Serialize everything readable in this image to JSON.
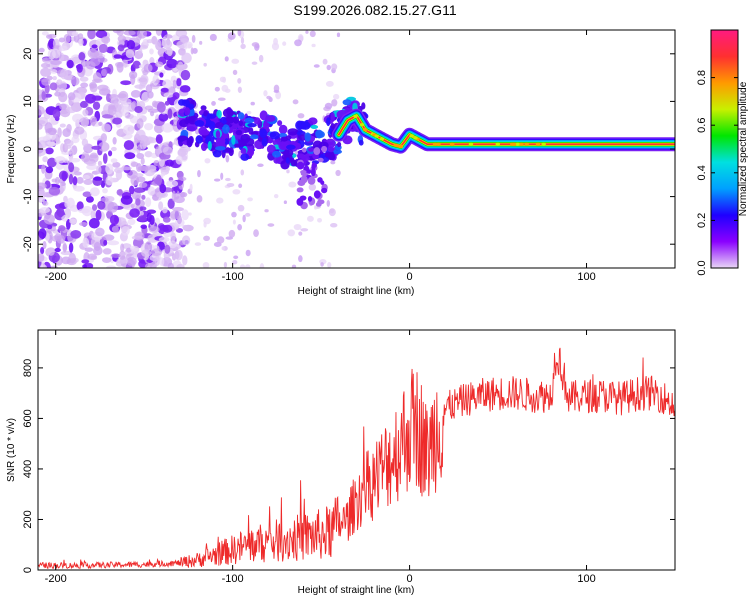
{
  "title": "S199.2026.082.15.27.G11",
  "colorbar": {
    "label": "Normalized spectral amplitude",
    "range": [
      0,
      1
    ],
    "ticks": [
      {
        "value": 0.0,
        "label": "0.0"
      },
      {
        "value": 0.2,
        "label": "0.2"
      },
      {
        "value": 0.4,
        "label": "0.4"
      },
      {
        "value": 0.6,
        "label": "0.6"
      },
      {
        "value": 0.8,
        "label": "0.8"
      }
    ],
    "colors": [
      "#e9d6f6",
      "#8a00ff",
      "#1f00ff",
      "#00a0ff",
      "#00e0e0",
      "#00e600",
      "#c8f000",
      "#ff9a00",
      "#ff3030",
      "#ff1a80"
    ]
  },
  "chart_data": [
    {
      "type": "heatmap",
      "xlabel": "Height of straight line (km)",
      "ylabel": "Frequency (Hz)",
      "xlim": [
        -210,
        150
      ],
      "ylim": [
        -25,
        25
      ],
      "xticks": [
        {
          "value": -200,
          "label": "-200"
        },
        {
          "value": -100,
          "label": "-100"
        },
        {
          "value": 0,
          "label": "0"
        },
        {
          "value": 100,
          "label": "100"
        }
      ],
      "yticks": [
        {
          "value": -20,
          "label": "-20"
        },
        {
          "value": -10,
          "label": "-10"
        },
        {
          "value": 0,
          "label": "0"
        },
        {
          "value": 10,
          "label": "10"
        },
        {
          "value": 20,
          "label": "20"
        }
      ],
      "ridge_line": {
        "x": [
          -130,
          -120,
          -110,
          -100,
          -90,
          -80,
          -70,
          -60,
          -50,
          -40,
          -35,
          -30,
          -25,
          -20,
          -15,
          -10,
          -5,
          0,
          5,
          10,
          20,
          40,
          60,
          80,
          100,
          150
        ],
        "frequency": [
          6,
          5,
          3,
          4,
          2,
          3,
          1,
          1,
          2,
          3,
          6,
          7,
          4,
          3,
          2,
          1,
          0.5,
          3,
          2,
          1,
          1,
          1,
          1,
          1,
          1,
          1
        ]
      }
    },
    {
      "type": "line",
      "xlabel": "Height of straight line (km)",
      "ylabel": "SNR (10 * v/v)",
      "xlim": [
        -210,
        150
      ],
      "ylim": [
        0,
        950
      ],
      "xticks": [
        {
          "value": -200,
          "label": "-200"
        },
        {
          "value": -100,
          "label": "-100"
        },
        {
          "value": 0,
          "label": "0"
        },
        {
          "value": 100,
          "label": "100"
        }
      ],
      "yticks": [
        {
          "value": 0,
          "label": "0"
        },
        {
          "value": 200,
          "label": "200"
        },
        {
          "value": 400,
          "label": "400"
        },
        {
          "value": 600,
          "label": "600"
        },
        {
          "value": 800,
          "label": "800"
        }
      ],
      "series": [
        {
          "name": "SNR",
          "color": "#ee2a2a",
          "x": [
            -210,
            -190,
            -170,
            -150,
            -130,
            -120,
            -110,
            -100,
            -90,
            -80,
            -70,
            -60,
            -50,
            -45,
            -40,
            -35,
            -30,
            -25,
            -20,
            -15,
            -10,
            -5,
            0,
            5,
            10,
            15,
            20,
            30,
            40,
            50,
            60,
            70,
            80,
            83,
            90,
            100,
            110,
            120,
            130,
            140,
            150
          ],
          "values": [
            18,
            18,
            20,
            22,
            28,
            40,
            60,
            80,
            100,
            110,
            120,
            130,
            140,
            150,
            180,
            200,
            280,
            320,
            360,
            400,
            450,
            500,
            560,
            570,
            450,
            560,
            640,
            670,
            690,
            700,
            700,
            690,
            690,
            880,
            680,
            690,
            690,
            680,
            700,
            700,
            650
          ]
        }
      ]
    }
  ]
}
